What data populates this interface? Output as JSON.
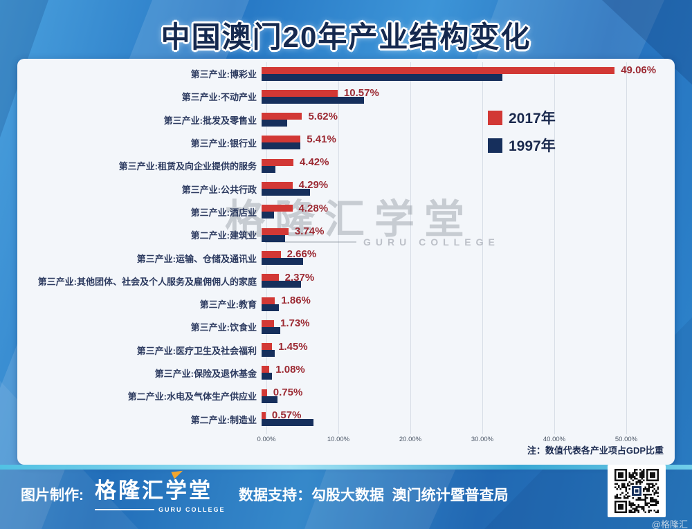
{
  "title": "中国澳门20年产业结构变化",
  "chart_data": {
    "type": "bar",
    "orientation": "horizontal",
    "title": "中国澳门20年产业结构变化",
    "xlabel": "",
    "ylabel": "",
    "xlim": [
      0,
      55
    ],
    "x_ticks": [
      "0.00%",
      "10.00%",
      "20.00%",
      "30.00%",
      "40.00%",
      "50.00%"
    ],
    "x_tick_values": [
      0,
      10,
      20,
      30,
      40,
      50
    ],
    "grid": "vertical",
    "legend_position": "upper-right-inside",
    "note": "注：数值代表各产业项占GDP比重",
    "categories": [
      "第三产业:博彩业",
      "第三产业:不动产业",
      "第三产业:批发及零售业",
      "第三产业:银行业",
      "第三产业:租赁及向企业提供的服务",
      "第三产业:公共行政",
      "第三产业:酒店业",
      "第二产业:建筑业",
      "第三产业:运输、仓储及通讯业",
      "第三产业:其他团体、社会及个人服务及雇佣佣人的家庭",
      "第三产业:教育",
      "第三产业:饮食业",
      "第三产业:医疗卫生及社会福利",
      "第三产业:保险及退休基金",
      "第二产业:水电及气体生产供应业",
      "第二产业:制造业"
    ],
    "series": [
      {
        "name": "2017年",
        "color": "#d23835",
        "values": [
          49.06,
          10.57,
          5.62,
          5.41,
          4.42,
          4.29,
          4.28,
          3.74,
          2.66,
          2.37,
          1.86,
          1.73,
          1.45,
          1.08,
          0.75,
          0.57
        ],
        "value_labels": [
          "49.06%",
          "10.57%",
          "5.62%",
          "5.41%",
          "4.42%",
          "4.29%",
          "4.28%",
          "3.74%",
          "2.66%",
          "2.37%",
          "1.86%",
          "1.73%",
          "1.45%",
          "1.08%",
          "0.75%",
          "0.57%"
        ]
      },
      {
        "name": "1997年",
        "color": "#162f5c",
        "values": [
          33.5,
          14.2,
          3.6,
          5.4,
          1.9,
          6.7,
          1.7,
          3.3,
          5.8,
          5.5,
          2.4,
          2.6,
          1.8,
          1.4,
          2.2,
          7.2
        ],
        "value_labels": []
      }
    ]
  },
  "legend": {
    "items": [
      "2017年",
      "1997年"
    ]
  },
  "note": "注：数值代表各产业项占GDP比重",
  "watermark": {
    "text": "格隆汇学堂",
    "subtext": "GURU COLLEGE"
  },
  "footer": {
    "made_by_label": "图片制作:",
    "logo_text": "格隆汇学堂",
    "logo_subtext": "GURU COLLEGE",
    "data_support": "数据支持：勾股大数据  澳门统计暨普查局",
    "corner_watermark": "@格隆汇"
  },
  "colors": {
    "bar_2017": "#d23835",
    "bar_1997": "#162f5c",
    "value_label": "#9c2a33",
    "category_label": "#2d3b60",
    "panel_bg": "#f3f6fa",
    "background_blue": "#2e86cd",
    "title_text": "#15294f"
  }
}
